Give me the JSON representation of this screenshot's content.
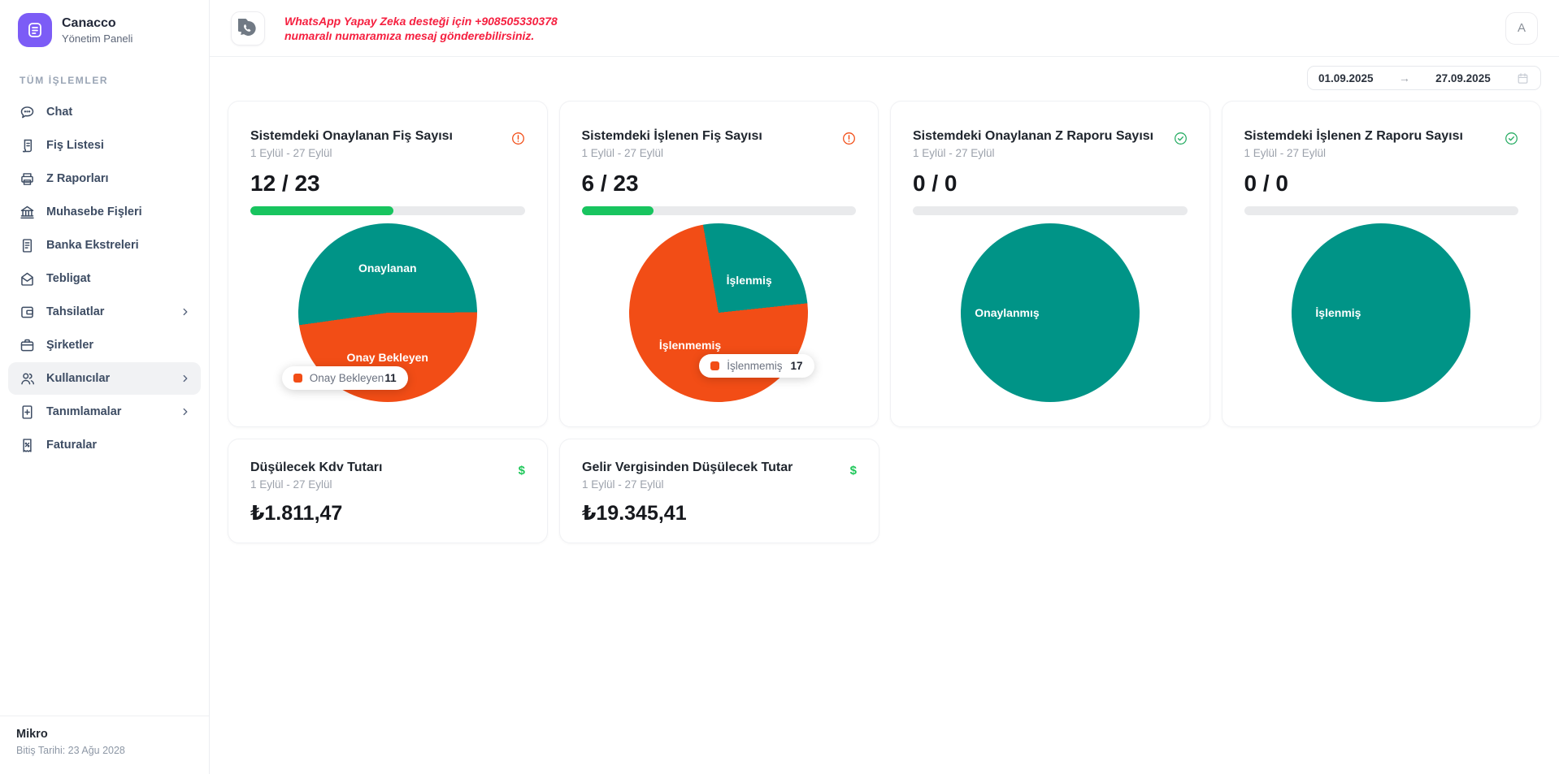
{
  "colors": {
    "brand_purple": "#7C5CF6",
    "pie_teal": "#009487",
    "pie_orange": "#F24D16",
    "progress_green": "#18C45F",
    "check_green": "#2BAE66",
    "money_green": "#1FC75A",
    "warning_orange": "#F24D16",
    "notice_red": "#F51F3F"
  },
  "sidebar": {
    "logo": {
      "title": "Canacco",
      "subtitle": "Yönetim Paneli"
    },
    "section_label": "TÜM İŞLEMLER",
    "items": [
      {
        "label": "Chat",
        "icon": "chat-icon",
        "has_submenu": false,
        "active": false
      },
      {
        "label": "Fiş Listesi",
        "icon": "receipt-icon",
        "has_submenu": false,
        "active": false
      },
      {
        "label": "Z Raporları",
        "icon": "printer-icon",
        "has_submenu": false,
        "active": false
      },
      {
        "label": "Muhasebe Fişleri",
        "icon": "bank-icon",
        "has_submenu": false,
        "active": false
      },
      {
        "label": "Banka Ekstreleri",
        "icon": "statement-icon",
        "has_submenu": false,
        "active": false
      },
      {
        "label": "Tebligat",
        "icon": "envelope-icon",
        "has_submenu": false,
        "active": false
      },
      {
        "label": "Tahsilatlar",
        "icon": "wallet-icon",
        "has_submenu": true,
        "active": false
      },
      {
        "label": "Şirketler",
        "icon": "briefcase-icon",
        "has_submenu": false,
        "active": false
      },
      {
        "label": "Kullanıcılar",
        "icon": "users-icon",
        "has_submenu": true,
        "active": true
      },
      {
        "label": "Tanımlamalar",
        "icon": "document-plus-icon",
        "has_submenu": true,
        "active": false
      },
      {
        "label": "Faturalar",
        "icon": "invoice-icon",
        "has_submenu": false,
        "active": false
      }
    ],
    "footer": {
      "title": "Mikro",
      "subtitle": "Bitiş Tarihi: 23 Ağu 2028"
    }
  },
  "header": {
    "notice_line1": "WhatsApp Yapay Zeka desteği için +908505330378",
    "notice_line2": "numaralı numaramıza mesaj gönderebilirsiniz.",
    "avatar_letter": "A"
  },
  "datepicker": {
    "start": "01.09.2025",
    "end": "27.09.2025",
    "arrow": "→"
  },
  "cards": [
    {
      "title": "Sistemdeki Onaylanan Fiş Sayısı",
      "subtitle": "1 Eylül - 27 Eylül",
      "status": "warning",
      "value": "12 / 23",
      "progress_pct": 52.2,
      "tooltip": {
        "label": "Onay Bekleyen",
        "value": "11"
      }
    },
    {
      "title": "Sistemdeki İşlenen Fiş Sayısı",
      "subtitle": "1 Eylül - 27 Eylül",
      "status": "warning",
      "value": "6 / 23",
      "progress_pct": 26.1,
      "tooltip": {
        "label": "İşlenmemiş",
        "value": "17"
      }
    },
    {
      "title": "Sistemdeki Onaylanan Z Raporu Sayısı",
      "subtitle": "1 Eylül - 27 Eylül",
      "status": "success",
      "value": "0 / 0",
      "progress_pct": 0
    },
    {
      "title": "Sistemdeki İşlenen Z Raporu Sayısı",
      "subtitle": "1 Eylül - 27 Eylül",
      "status": "success",
      "value": "0 / 0",
      "progress_pct": 0
    }
  ],
  "money_cards": [
    {
      "title": "Düşülecek Kdv Tutarı",
      "subtitle": "1 Eylül - 27 Eylül",
      "amount": "₺1.811,47"
    },
    {
      "title": "Gelir Vergisinden Düşülecek Tutar",
      "subtitle": "1 Eylül - 27 Eylül",
      "amount": "₺19.345,41"
    }
  ],
  "chart_data": [
    {
      "type": "pie",
      "title": "Sistemdeki Onaylanan Fiş Sayısı",
      "start_deg": 262,
      "slices": [
        {
          "label": "Onaylanan",
          "value": 12
        },
        {
          "label": "Onay Bekleyen",
          "value": 11
        }
      ],
      "colors": [
        "#009487",
        "#F24D16"
      ]
    },
    {
      "type": "pie",
      "title": "Sistemdeki İşlenen Fiş Sayısı",
      "start_deg": 350,
      "slices": [
        {
          "label": "İşlenmiş",
          "value": 6
        },
        {
          "label": "İşlenmemiş",
          "value": 17
        }
      ],
      "colors": [
        "#009487",
        "#F24D16"
      ]
    },
    {
      "type": "pie",
      "title": "Sistemdeki Onaylanan Z Raporu Sayısı",
      "start_deg": 0,
      "slices": [
        {
          "label": "Onaylanmış",
          "value": 0
        }
      ],
      "colors": [
        "#009487"
      ]
    },
    {
      "type": "pie",
      "title": "Sistemdeki İşlenen Z Raporu Sayısı",
      "start_deg": 0,
      "slices": [
        {
          "label": "İşlenmiş",
          "value": 0
        }
      ],
      "colors": [
        "#009487"
      ]
    }
  ]
}
